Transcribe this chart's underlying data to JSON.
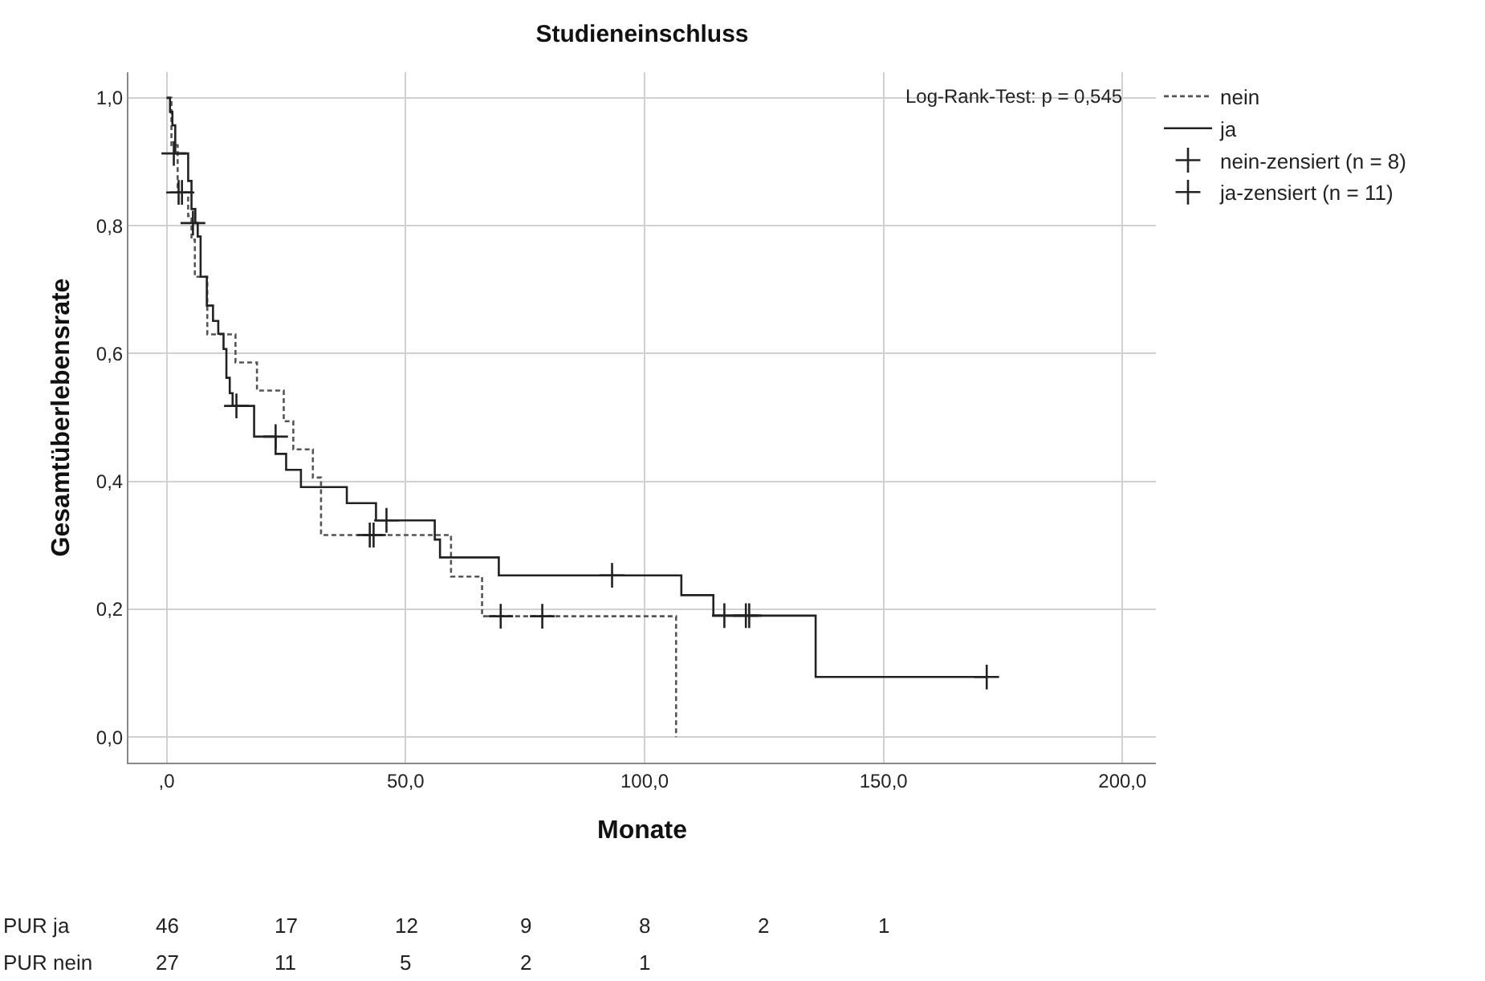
{
  "chart_data": {
    "type": "step",
    "title": "Studieneinschluss",
    "xlabel": "Monate",
    "ylabel": "Gesamtüberlebensrate",
    "xlim": [
      -8,
      207
    ],
    "ylim": [
      -0.04,
      1.04
    ],
    "xticks": [
      {
        "value": 0,
        "label": ",0"
      },
      {
        "value": 50,
        "label": "50,0"
      },
      {
        "value": 100,
        "label": "100,0"
      },
      {
        "value": 150,
        "label": "150,0"
      },
      {
        "value": 200,
        "label": "200,0"
      }
    ],
    "yticks": [
      {
        "value": 0,
        "label": "0,0"
      },
      {
        "value": 0.2,
        "label": "0,2"
      },
      {
        "value": 0.4,
        "label": "0,4"
      },
      {
        "value": 0.6,
        "label": "0,6"
      },
      {
        "value": 0.8,
        "label": "0,8"
      },
      {
        "value": 1.0,
        "label": "1,0"
      }
    ],
    "grid": true,
    "legend": "top right",
    "series": [
      {
        "name": "nein",
        "color": "#555555",
        "line_style": "dashed",
        "x": [
          0,
          1,
          2.3,
          4.5,
          5.2,
          5.9,
          8.5,
          14.4,
          18.9,
          24.5,
          26.5,
          30.6,
          32.3,
          59.5,
          66.0,
          106.6
        ],
        "values": [
          1.0,
          0.926,
          0.852,
          0.815,
          0.778,
          0.72,
          0.63,
          0.586,
          0.542,
          0.494,
          0.45,
          0.406,
          0.316,
          0.251,
          0.189,
          0.0
        ]
      },
      {
        "name": "ja",
        "color": "#222222",
        "line_style": "solid",
        "x": [
          0,
          0.7,
          1.2,
          1.8,
          4.5,
          5.2,
          6,
          6.5,
          7.1,
          8.4,
          9.7,
          10.8,
          11.9,
          12.5,
          13.2,
          13.8,
          18.3,
          22.8,
          25.0,
          28.1,
          37.7,
          43.8,
          56.1,
          57.2,
          69.5,
          107.7,
          114.4,
          135.8,
          171.6
        ],
        "values": [
          1.0,
          0.978,
          0.957,
          0.913,
          0.87,
          0.826,
          0.804,
          0.783,
          0.72,
          0.675,
          0.651,
          0.631,
          0.607,
          0.562,
          0.538,
          0.518,
          0.47,
          0.443,
          0.418,
          0.391,
          0.366,
          0.339,
          0.309,
          0.281,
          0.253,
          0.222,
          0.19,
          0.094,
          0.094
        ]
      },
      {
        "name": "nein-zensiert (n = 8)",
        "type": "scatter",
        "marker": "cross",
        "color": "#222222",
        "x": [
          2.5,
          3.2,
          42.5,
          43.3,
          69.9,
          78.6
        ],
        "values": [
          0.852,
          0.852,
          0.316,
          0.316,
          0.189,
          0.189
        ]
      },
      {
        "name": "ja-zensiert (n = 11)",
        "type": "scatter",
        "marker": "cross",
        "color": "#222222",
        "x": [
          1.5,
          5.5,
          14.6,
          22.8,
          46.0,
          93.2,
          116.7,
          121.2,
          121.9,
          171.6
        ],
        "values": [
          0.913,
          0.804,
          0.518,
          0.47,
          0.339,
          0.253,
          0.19,
          0.19,
          0.19,
          0.094
        ]
      }
    ],
    "annotations": [
      "Log-Rank-Test: p = 0,545",
      "PUR ja",
      "46",
      "17",
      "12",
      "9",
      "8",
      "2",
      "1",
      "PUR nein",
      "27",
      "11",
      "5",
      "2",
      "1"
    ]
  }
}
